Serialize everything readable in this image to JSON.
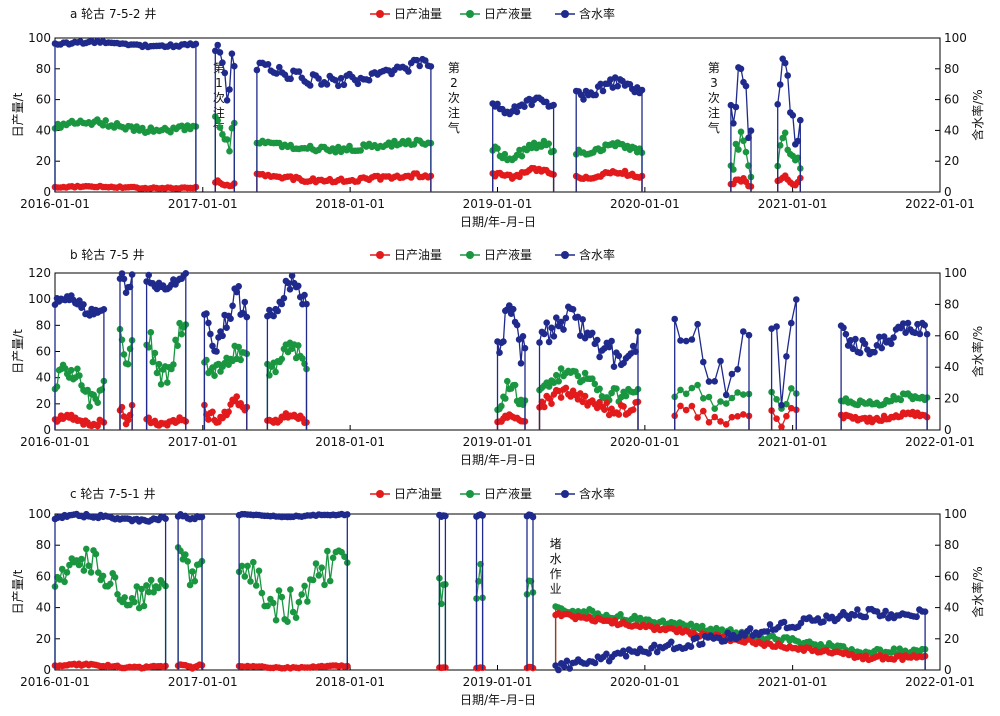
{
  "legend": {
    "oil": "日产油量",
    "liquid": "日产液量",
    "water": "含水率"
  },
  "colors": {
    "oil": "#e31a1c",
    "liquid": "#1a9641",
    "water": "#1f2a8c"
  },
  "chart_data": [
    {
      "type": "line",
      "title": "a 轮古 7-5-2 井",
      "xlabel": "日期/年–月–日",
      "ylabel": "日产量/t",
      "y2label": "含水率/%",
      "x_ticks": [
        "2016-01-01",
        "2017-01-01",
        "2018-01-01",
        "2019-01-01",
        "2020-01-01",
        "2021-01-01",
        "2022-01-01"
      ],
      "xlim": [
        "2016-01-01",
        "2022-01-01"
      ],
      "ylim": [
        0,
        100
      ],
      "y_ticks": [
        "0",
        "20",
        "40",
        "60",
        "80",
        "100"
      ],
      "y2lim": [
        0,
        100
      ],
      "y2_ticks": [
        "0",
        "20",
        "40",
        "60",
        "80",
        "100"
      ],
      "annotations": [
        {
          "lines": [
            "第",
            "1",
            "次",
            "注",
            "气"
          ],
          "x": "2017-02-10"
        },
        {
          "lines": [
            "第",
            "2",
            "次",
            "注",
            "气"
          ],
          "x": "2018-09-15"
        },
        {
          "lines": [
            "第",
            "3",
            "次",
            "注",
            "气"
          ],
          "x": "2020-06-20"
        }
      ],
      "segments": [
        {
          "start": "2016-01-01",
          "end": "2016-12-15",
          "oil": [
            2,
            4
          ],
          "liquid": [
            38,
            47
          ],
          "water": [
            94,
            98
          ],
          "step": 7
        },
        {
          "start": "2017-02-01",
          "end": "2017-03-20",
          "oil": [
            2,
            8
          ],
          "liquid": [
            20,
            55
          ],
          "water": [
            60,
            99
          ],
          "step": 6
        },
        {
          "start": "2017-05-15",
          "end": "2018-07-20",
          "oil": [
            6,
            12
          ],
          "liquid": [
            26,
            34
          ],
          "water": [
            68,
            86
          ],
          "step": 7
        },
        {
          "start": "2018-12-20",
          "end": "2019-05-20",
          "oil": [
            8,
            16
          ],
          "liquid": [
            20,
            34
          ],
          "water": [
            50,
            62
          ],
          "step": 6
        },
        {
          "start": "2019-07-15",
          "end": "2019-12-25",
          "oil": [
            8,
            14
          ],
          "liquid": [
            24,
            32
          ],
          "water": [
            60,
            74
          ],
          "step": 6
        },
        {
          "start": "2020-08-01",
          "end": "2020-09-20",
          "oil": [
            2,
            10
          ],
          "liquid": [
            10,
            40
          ],
          "water": [
            30,
            96
          ],
          "step": 6
        },
        {
          "start": "2020-11-25",
          "end": "2021-01-20",
          "oil": [
            4,
            12
          ],
          "liquid": [
            8,
            40
          ],
          "water": [
            20,
            90
          ],
          "step": 6
        }
      ]
    },
    {
      "type": "line",
      "title": "b 轮古 7-5 井",
      "xlabel": "日期/年–月–日",
      "ylabel": "日产量/t",
      "y2label": "含水率/%",
      "x_ticks": [
        "2016-01-01",
        "2017-01-01",
        "2018-01-01",
        "2019-01-01",
        "2020-01-01",
        "2021-01-01",
        "2022-01-01"
      ],
      "xlim": [
        "2016-01-01",
        "2022-01-01"
      ],
      "ylim": [
        0,
        120
      ],
      "y_ticks": [
        "0",
        "20",
        "40",
        "60",
        "80",
        "100",
        "120"
      ],
      "y2lim": [
        0,
        100
      ],
      "y2_ticks": [
        "0",
        "20",
        "40",
        "60",
        "80",
        "100"
      ],
      "annotations": [],
      "segments": [
        {
          "start": "2016-01-01",
          "end": "2016-05-01",
          "oil": [
            2,
            12
          ],
          "liquid": [
            18,
            55
          ],
          "water": [
            72,
            88
          ],
          "step": 5
        },
        {
          "start": "2016-06-10",
          "end": "2016-07-10",
          "oil": [
            4,
            24
          ],
          "liquid": [
            40,
            80
          ],
          "water": [
            86,
            100
          ],
          "step": 5
        },
        {
          "start": "2016-08-15",
          "end": "2016-11-20",
          "oil": [
            2,
            10
          ],
          "liquid": [
            30,
            85
          ],
          "water": [
            88,
            100
          ],
          "step": 5
        },
        {
          "start": "2017-01-05",
          "end": "2017-04-20",
          "oil": [
            4,
            26
          ],
          "liquid": [
            40,
            65
          ],
          "water": [
            50,
            92
          ],
          "step": 5
        },
        {
          "start": "2017-06-10",
          "end": "2017-09-15",
          "oil": [
            4,
            14
          ],
          "liquid": [
            40,
            70
          ],
          "water": [
            70,
            98
          ],
          "step": 5
        },
        {
          "start": "2019-01-01",
          "end": "2019-03-10",
          "oil": [
            4,
            12
          ],
          "liquid": [
            10,
            40
          ],
          "water": [
            40,
            86
          ],
          "step": 5
        },
        {
          "start": "2019-04-15",
          "end": "2019-12-15",
          "oil": [
            10,
            32
          ],
          "liquid": [
            22,
            48
          ],
          "water": [
            40,
            78
          ],
          "step": 6
        },
        {
          "start": "2020-03-15",
          "end": "2020-09-15",
          "oil": [
            2,
            20
          ],
          "liquid": [
            10,
            40
          ],
          "water": [
            20,
            80
          ],
          "step": 14
        },
        {
          "start": "2020-11-10",
          "end": "2021-01-10",
          "oil": [
            2,
            20
          ],
          "liquid": [
            6,
            40
          ],
          "water": [
            10,
            90
          ],
          "step": 12
        },
        {
          "start": "2021-05-01",
          "end": "2021-11-30",
          "oil": [
            6,
            14
          ],
          "liquid": [
            18,
            28
          ],
          "water": [
            48,
            70
          ],
          "step": 6
        }
      ]
    },
    {
      "type": "line",
      "title": "c 轮古 7-5-1 井",
      "xlabel": "日期/年–月–日",
      "ylabel": "日产量/t",
      "y2label": "含水率/%",
      "x_ticks": [
        "2016-01-01",
        "2017-01-01",
        "2018-01-01",
        "2019-01-01",
        "2020-01-01",
        "2021-01-01",
        "2022-01-01"
      ],
      "xlim": [
        "2016-01-01",
        "2022-01-01"
      ],
      "ylim": [
        0,
        100
      ],
      "y_ticks": [
        "0",
        "20",
        "40",
        "60",
        "80",
        "100"
      ],
      "y2lim": [
        0,
        100
      ],
      "y2_ticks": [
        "0",
        "20",
        "40",
        "60",
        "80",
        "100"
      ],
      "annotations": [
        {
          "lines": [
            "堵",
            "水",
            "作",
            "业"
          ],
          "x": "2019-05-25"
        }
      ],
      "segments": [
        {
          "start": "2016-01-01",
          "end": "2016-10-01",
          "oil": [
            1,
            4
          ],
          "liquid": [
            40,
            78
          ],
          "water": [
            95,
            100
          ],
          "step": 6
        },
        {
          "start": "2016-11-01",
          "end": "2016-12-30",
          "oil": [
            1,
            4
          ],
          "liquid": [
            50,
            82
          ],
          "water": [
            96,
            100
          ],
          "step": 6
        },
        {
          "start": "2017-04-01",
          "end": "2017-12-25",
          "oil": [
            1,
            3
          ],
          "liquid": [
            30,
            80
          ],
          "water": [
            98,
            100
          ],
          "step": 7
        },
        {
          "start": "2018-08-10",
          "end": "2018-08-25",
          "oil": [
            1,
            2
          ],
          "liquid": [
            40,
            65
          ],
          "water": [
            98,
            100
          ],
          "step": 7
        },
        {
          "start": "2018-11-10",
          "end": "2018-11-25",
          "oil": [
            1,
            2
          ],
          "liquid": [
            40,
            70
          ],
          "water": [
            98,
            100
          ],
          "step": 7
        },
        {
          "start": "2019-03-15",
          "end": "2019-03-30",
          "oil": [
            1,
            2
          ],
          "liquid": [
            40,
            65
          ],
          "water": [
            98,
            100
          ],
          "step": 7
        },
        {
          "start": "2019-05-25",
          "end": "2021-11-25",
          "oil": [
            8,
            36
          ],
          "liquid": [
            10,
            40
          ],
          "water": [
            2,
            36
          ],
          "step": 7
        }
      ]
    }
  ]
}
